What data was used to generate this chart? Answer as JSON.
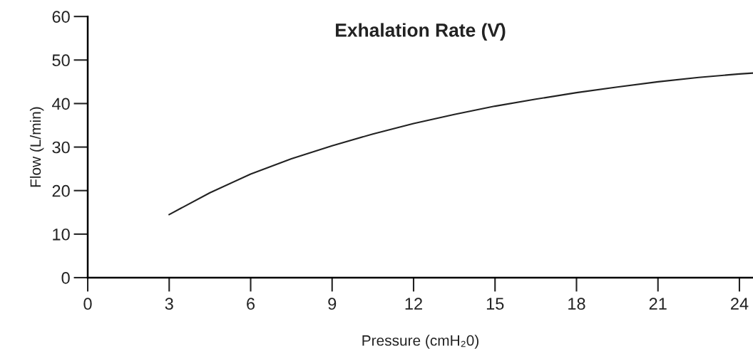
{
  "chart_data": {
    "type": "line",
    "title": "Exhalation Rate (V̇)",
    "xlabel": "Pressure (cmH₂0)",
    "ylabel": "Flow (L/min)",
    "x": [
      3,
      4.5,
      6,
      7.5,
      9,
      10.5,
      12,
      13.5,
      15,
      16.5,
      18,
      19.5,
      21,
      22.5,
      24,
      24.5
    ],
    "series": [
      {
        "color": "#222222",
        "values": [
          14.5,
          19.5,
          23.8,
          27.3,
          30.3,
          33,
          35.4,
          37.5,
          39.4,
          41,
          42.5,
          43.8,
          45,
          46,
          46.8,
          47
        ]
      }
    ],
    "xlim": [
      0,
      24.5
    ],
    "ylim": [
      0,
      60
    ],
    "xticks": [
      0,
      3,
      6,
      9,
      12,
      15,
      18,
      21,
      24
    ],
    "yticks": [
      0,
      10,
      20,
      30,
      40,
      50,
      60
    ],
    "grid": false,
    "legend": false,
    "marker": "none",
    "line_style": "solid"
  }
}
